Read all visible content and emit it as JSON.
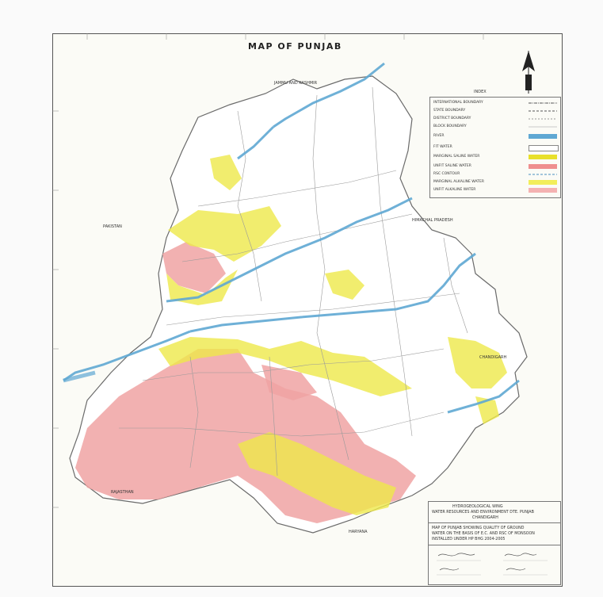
{
  "map": {
    "title": "MAP OF PUNJAB",
    "places": {
      "jammu": "JAMMU AND KASHMIR",
      "himachal": "HIMACHAL PRADESH",
      "pakistan": "PAKISTAN",
      "rajasthan": "RAJASTHAN",
      "haryana": "HARYANA",
      "chandigarh": "CHANDIGARH"
    }
  },
  "legend": {
    "title": "INDEX",
    "items": [
      {
        "label": "INTERNATIONAL BOUNDARY",
        "color": "#555555"
      },
      {
        "label": "STATE BOUNDARY",
        "color": "#555555"
      },
      {
        "label": "DISTRICT BOUNDARY",
        "color": "#777777"
      },
      {
        "label": "BLOCK BOUNDARY",
        "color": "#999999"
      },
      {
        "label": "RIVER",
        "color": "#5fa8d3"
      },
      {
        "label": "FIT WATER",
        "color": "#ffffff"
      },
      {
        "label": "MARGINAL SALINE WATER",
        "color": "#e8e02a"
      },
      {
        "label": "UNFIT SALINE WATER",
        "color": "#ef8f8f"
      },
      {
        "label": "RSC CONTOUR",
        "color": "#4a8fc0"
      },
      {
        "label": "MARGINAL ALKALINE WATER",
        "color": "#f2ee5a"
      },
      {
        "label": "UNFIT ALKALINE WATER",
        "color": "#f4b2b2"
      }
    ]
  },
  "infobox": {
    "org1": "HYDROGEOLOGICAL WING",
    "org2": "WATER RESOURCES AND ENVIRONMENT DTE. PUNJAB",
    "org3": "CHANDIGARH",
    "desc1": "MAP OF PUNJAB SHOWING QUALITY OF GROUND",
    "desc2": "WATER ON THE BASIS OF E.C. AND RSC OF MONSOON",
    "desc3": "INSTALLED UNDER HP BHG 2004-2005"
  },
  "colors": {
    "river": "#5fa8d3",
    "marginal": "#ede84a",
    "unfit": "#f0a3a3",
    "boundary": "#8a8a8a"
  }
}
